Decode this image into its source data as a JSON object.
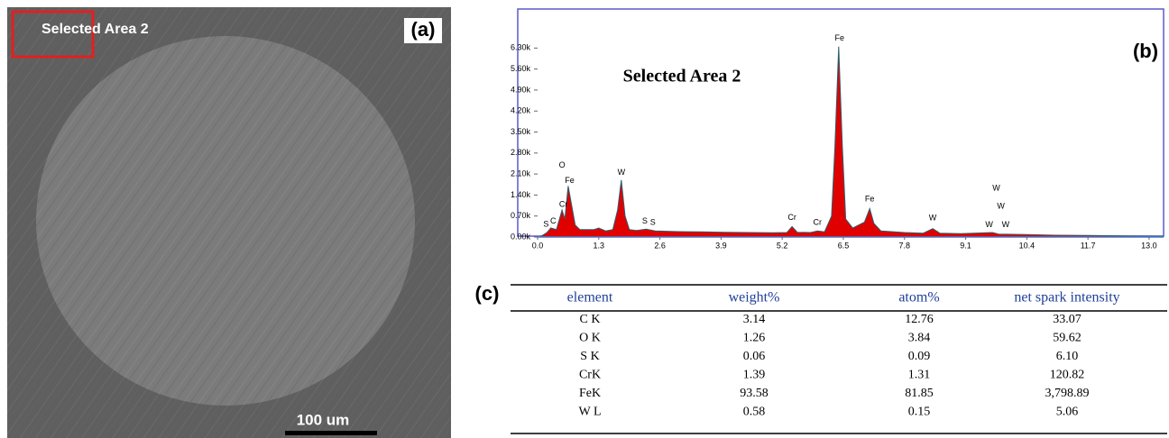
{
  "panel_a": {
    "label": "(a)",
    "caption": "Selected Area 2",
    "scale_bar": "100 um"
  },
  "chart_data": {
    "type": "area",
    "label": "(b)",
    "title": "Selected Area 2",
    "color": "#e00000",
    "x": [
      0.0,
      0.1,
      0.2,
      0.28,
      0.4,
      0.52,
      0.58,
      0.65,
      0.72,
      0.8,
      0.9,
      1.0,
      1.2,
      1.3,
      1.45,
      1.6,
      1.7,
      1.78,
      1.86,
      1.95,
      2.1,
      2.31,
      2.5,
      3.0,
      3.5,
      4.0,
      4.5,
      5.0,
      5.3,
      5.41,
      5.52,
      5.8,
      5.95,
      6.1,
      6.25,
      6.32,
      6.4,
      6.48,
      6.55,
      6.7,
      6.95,
      7.06,
      7.15,
      7.3,
      7.8,
      8.2,
      8.4,
      8.55,
      9.0,
      9.67,
      9.8,
      10.4,
      11.0,
      11.7,
      12.5,
      13.3
    ],
    "values": [
      0,
      50,
      150,
      300,
      250,
      900,
      600,
      1700,
      1100,
      400,
      250,
      250,
      250,
      300,
      200,
      250,
      900,
      1900,
      700,
      250,
      220,
      260,
      200,
      180,
      170,
      160,
      150,
      140,
      150,
      350,
      160,
      150,
      200,
      170,
      700,
      3000,
      6350,
      3000,
      600,
      300,
      500,
      950,
      450,
      200,
      150,
      130,
      280,
      130,
      110,
      150,
      100,
      80,
      60,
      50,
      40,
      30
    ],
    "xlim": [
      0,
      13.3
    ],
    "ylim": [
      0,
      6700
    ],
    "xticks": [
      {
        "value": 0,
        "label": "0.0"
      },
      1.3,
      2.6,
      3.9,
      5.2,
      6.5,
      7.8,
      9.1,
      10.4,
      11.7,
      {
        "value": 13,
        "label": "13.0"
      }
    ],
    "yticks": [
      {
        "value": 0,
        "label": "0.00k"
      },
      {
        "value": 700,
        "label": "0.70k"
      },
      {
        "value": 1400,
        "label": "1.40k"
      },
      {
        "value": 2100,
        "label": "2.10k"
      },
      {
        "value": 2800,
        "label": "2.80k"
      },
      {
        "value": 3500,
        "label": "3.50k"
      },
      {
        "value": 4200,
        "label": "4.20k"
      },
      {
        "value": 4900,
        "label": "4.90k"
      },
      {
        "value": 5600,
        "label": "5.60k"
      },
      {
        "value": 6300,
        "label": "6.30k"
      }
    ],
    "peak_labels": [
      {
        "text": "S",
        "x": 0.18,
        "y": 420
      },
      {
        "text": "C",
        "x": 0.33,
        "y": 520
      },
      {
        "text": "O",
        "x": 0.52,
        "y": 2380
      },
      {
        "text": "Fe",
        "x": 0.68,
        "y": 1880
      },
      {
        "text": "Cr",
        "x": 0.55,
        "y": 1080
      },
      {
        "text": "W",
        "x": 1.78,
        "y": 2150
      },
      {
        "text": "S",
        "x": 2.28,
        "y": 520
      },
      {
        "text": "S",
        "x": 2.45,
        "y": 470
      },
      {
        "text": "Cr",
        "x": 5.41,
        "y": 640
      },
      {
        "text": "Cr",
        "x": 5.95,
        "y": 470
      },
      {
        "text": "Fe",
        "x": 6.42,
        "y": 6620
      },
      {
        "text": "Fe",
        "x": 7.06,
        "y": 1260
      },
      {
        "text": "W",
        "x": 8.4,
        "y": 620
      },
      {
        "text": "W",
        "x": 9.6,
        "y": 400
      },
      {
        "text": "W",
        "x": 9.95,
        "y": 400
      },
      {
        "text": "W",
        "x": 9.75,
        "y": 1620
      },
      {
        "text": "W",
        "x": 9.85,
        "y": 1020
      }
    ]
  },
  "table": {
    "label": "(c)",
    "header": [
      "element",
      "weight%",
      "atom%",
      "net spark intensity"
    ],
    "rows": [
      [
        "C K",
        "3.14",
        "12.76",
        "33.07"
      ],
      [
        "O K",
        "1.26",
        "3.84",
        "59.62"
      ],
      [
        "S K",
        "0.06",
        "0.09",
        "6.10"
      ],
      [
        "CrK",
        "1.39",
        "1.31",
        "120.82"
      ],
      [
        "FeK",
        "93.58",
        "81.85",
        "3,798.89"
      ],
      [
        "W L",
        "0.58",
        "0.15",
        "5.06"
      ]
    ]
  }
}
